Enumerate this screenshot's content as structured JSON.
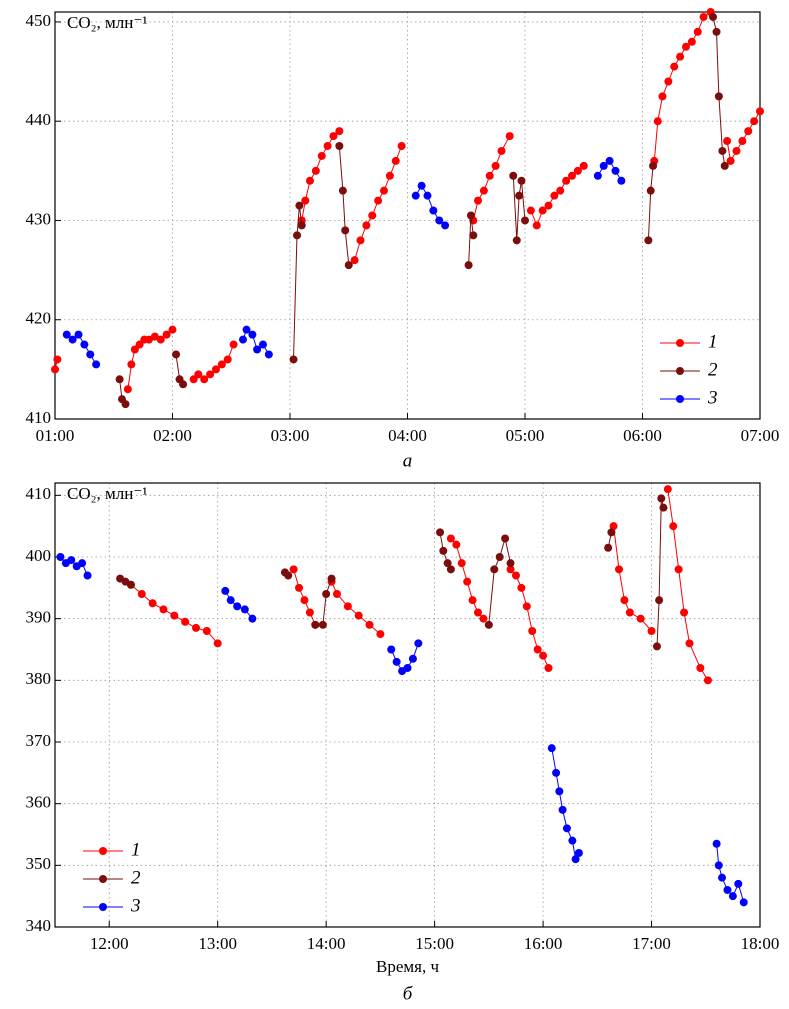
{
  "chart_data": [
    {
      "type": "line",
      "ylabel": "CO₂, млн⁻¹",
      "panel": "а",
      "grid": true,
      "legend": "lower right",
      "xlim": [
        1,
        7
      ],
      "ylim": [
        410,
        451
      ],
      "xticks": [
        {
          "value": 1,
          "label": "01:00"
        },
        {
          "value": 2,
          "label": "02:00"
        },
        {
          "value": 3,
          "label": "03:00"
        },
        {
          "value": 4,
          "label": "04:00"
        },
        {
          "value": 5,
          "label": "05:00"
        },
        {
          "value": 6,
          "label": "06:00"
        },
        {
          "value": 7,
          "label": "07:00"
        }
      ],
      "yticks": [
        410,
        420,
        430,
        440,
        450
      ],
      "series": [
        {
          "name": "1",
          "color": "#ff0000",
          "x": [
            1.0,
            1.02,
            null,
            1.62,
            1.65,
            1.68,
            1.72,
            1.76,
            1.8,
            1.85,
            1.9,
            1.95,
            2.0,
            null,
            2.18,
            2.22,
            2.27,
            2.32,
            2.37,
            2.42,
            2.47,
            2.52,
            null,
            3.1,
            3.13,
            3.17,
            3.22,
            3.27,
            3.32,
            3.37,
            3.42,
            null,
            3.55,
            3.6,
            3.65,
            3.7,
            3.75,
            3.8,
            3.85,
            3.9,
            3.95,
            null,
            4.56,
            4.6,
            4.65,
            4.7,
            4.75,
            4.8,
            4.87,
            null,
            5.05,
            5.1,
            5.15,
            5.2,
            5.25,
            5.3,
            5.35,
            5.4,
            5.45,
            5.5,
            null,
            6.1,
            6.13,
            6.17,
            6.22,
            6.27,
            6.32,
            6.37,
            6.42,
            6.47,
            6.52,
            6.58,
            null,
            6.72,
            6.75,
            6.8,
            6.85,
            6.9,
            6.95,
            7.0
          ],
          "values": [
            415,
            416,
            null,
            413,
            415.5,
            417,
            417.5,
            418,
            418,
            418.3,
            418,
            418.5,
            419,
            null,
            414,
            414.5,
            414,
            414.5,
            415,
            415.5,
            416,
            417.5,
            null,
            430,
            432,
            434,
            435,
            436.5,
            437.5,
            438.5,
            439,
            null,
            426,
            428,
            429.5,
            430.5,
            432,
            433,
            434.5,
            436,
            437.5,
            null,
            430,
            432,
            433,
            434.5,
            435.5,
            437,
            438.5,
            null,
            431,
            429.5,
            431,
            431.5,
            432.5,
            433,
            434,
            434.5,
            435,
            435.5,
            null,
            436,
            440,
            442.5,
            444,
            445.5,
            446.5,
            447.5,
            448,
            449,
            450.5,
            451,
            null,
            438,
            436,
            437,
            438,
            439,
            440,
            441
          ]
        },
        {
          "name": "2",
          "color": "#7b0d0d",
          "x": [
            1.55,
            1.57,
            1.6,
            null,
            2.03,
            2.06,
            2.09,
            null,
            3.03,
            3.06,
            3.08,
            3.1,
            null,
            3.42,
            3.45,
            3.47,
            3.5,
            null,
            4.52,
            4.54,
            4.56,
            null,
            4.9,
            4.93,
            4.95,
            4.97,
            5.0,
            null,
            6.05,
            6.07,
            6.09,
            null,
            6.6,
            6.63,
            6.65,
            6.68,
            6.7
          ],
          "values": [
            414,
            412,
            411.5,
            null,
            416.5,
            414,
            413.5,
            null,
            416,
            428.5,
            431.5,
            429.5,
            null,
            437.5,
            433,
            429,
            425.5,
            null,
            425.5,
            430.5,
            428.5,
            null,
            434.5,
            428,
            432.5,
            434,
            430,
            null,
            428,
            433,
            435.5,
            null,
            450.5,
            449,
            442.5,
            437,
            435.5
          ]
        },
        {
          "name": "3",
          "color": "#0000ff",
          "x": [
            1.1,
            1.15,
            1.2,
            1.25,
            1.3,
            1.35,
            null,
            2.6,
            2.63,
            2.68,
            2.72,
            2.77,
            2.82,
            null,
            4.07,
            4.12,
            4.17,
            4.22,
            4.27,
            4.32,
            null,
            5.62,
            5.67,
            5.72,
            5.77,
            5.82
          ],
          "values": [
            418.5,
            418,
            418.5,
            417.5,
            416.5,
            415.5,
            null,
            418,
            419,
            418.5,
            417,
            417.5,
            416.5,
            null,
            432.5,
            433.5,
            432.5,
            431,
            430,
            429.5,
            null,
            434.5,
            435.5,
            436,
            435,
            434
          ]
        }
      ]
    },
    {
      "type": "line",
      "ylabel": "CO₂, млн⁻¹",
      "panel": "б",
      "xlabel": "Время, ч",
      "grid": true,
      "legend": "lower left",
      "xlim": [
        11.5,
        18
      ],
      "ylim": [
        340,
        412
      ],
      "xticks": [
        {
          "value": 12,
          "label": "12:00"
        },
        {
          "value": 13,
          "label": "13:00"
        },
        {
          "value": 14,
          "label": "14:00"
        },
        {
          "value": 15,
          "label": "15:00"
        },
        {
          "value": 16,
          "label": "16:00"
        },
        {
          "value": 17,
          "label": "17:00"
        },
        {
          "value": 18,
          "label": "18:00"
        }
      ],
      "yticks": [
        340,
        350,
        360,
        370,
        380,
        390,
        400,
        410
      ],
      "series": [
        {
          "name": "1",
          "color": "#ff0000",
          "x": [
            12.2,
            12.3,
            12.4,
            12.5,
            12.6,
            12.7,
            12.8,
            12.9,
            13.0,
            null,
            13.7,
            13.75,
            13.8,
            13.85,
            13.9,
            null,
            14.05,
            14.1,
            14.2,
            14.3,
            14.4,
            14.5,
            null,
            15.15,
            15.2,
            15.25,
            15.3,
            15.35,
            15.4,
            15.45,
            null,
            15.7,
            15.75,
            15.8,
            15.85,
            15.9,
            15.95,
            16.0,
            16.05,
            null,
            16.65,
            16.7,
            16.75,
            16.8,
            16.9,
            17.0,
            null,
            17.15,
            17.2,
            17.25,
            17.3,
            17.35,
            17.45,
            17.52
          ],
          "values": [
            395.5,
            394,
            392.5,
            391.5,
            390.5,
            389.5,
            388.5,
            388,
            386,
            null,
            398,
            395,
            393,
            391,
            389,
            null,
            396,
            394,
            392,
            390.5,
            389,
            387.5,
            null,
            403,
            402,
            399,
            396,
            393,
            391,
            390,
            null,
            398,
            397,
            395,
            392,
            388,
            385,
            384,
            382,
            null,
            405,
            398,
            393,
            391,
            390,
            388,
            null,
            411,
            405,
            398,
            391,
            386,
            382,
            380
          ]
        },
        {
          "name": "2",
          "color": "#7b0d0d",
          "x": [
            12.1,
            12.15,
            12.2,
            null,
            13.62,
            13.65,
            null,
            13.9,
            13.97,
            14.0,
            14.05,
            null,
            15.05,
            15.08,
            15.12,
            15.15,
            null,
            15.5,
            15.55,
            15.6,
            15.65,
            15.7,
            null,
            16.6,
            16.63,
            null,
            17.05,
            17.07,
            17.09,
            17.11
          ],
          "values": [
            396.5,
            396,
            395.5,
            null,
            397.5,
            397,
            null,
            389,
            389,
            394,
            396.5,
            null,
            404,
            401,
            399,
            398,
            null,
            389,
            398,
            400,
            403,
            399,
            null,
            401.5,
            404,
            null,
            385.5,
            393,
            409.5,
            408
          ]
        },
        {
          "name": "3",
          "color": "#0000ff",
          "x": [
            11.55,
            11.6,
            11.65,
            11.7,
            11.75,
            11.8,
            null,
            13.07,
            13.12,
            13.18,
            13.25,
            13.32,
            null,
            14.6,
            14.65,
            14.7,
            14.75,
            14.8,
            14.85,
            null,
            16.08,
            16.12,
            16.15,
            16.18,
            16.22,
            16.27,
            16.3,
            16.33,
            null,
            17.6,
            17.62,
            17.65,
            17.7,
            17.75,
            17.8,
            17.85
          ],
          "values": [
            400,
            399,
            399.5,
            398.5,
            399,
            397,
            null,
            394.5,
            393,
            392,
            391.5,
            390,
            null,
            385,
            383,
            381.5,
            382,
            383.5,
            386,
            null,
            369,
            365,
            362,
            359,
            356,
            354,
            351,
            352,
            null,
            353.5,
            350,
            348,
            346,
            345,
            347,
            344
          ]
        }
      ]
    }
  ]
}
